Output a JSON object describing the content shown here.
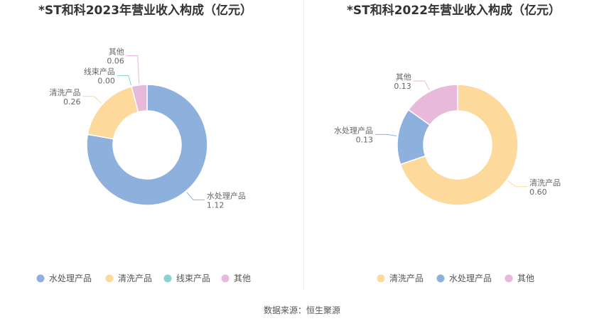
{
  "source": "数据来源：恒生聚源",
  "chart_data": [
    {
      "type": "pie",
      "title": "*ST和科2023年营业收入构成（亿元）",
      "categories": [
        "水处理产品",
        "清洗产品",
        "线束产品",
        "其他"
      ],
      "values": [
        1.12,
        0.26,
        0.0,
        0.06
      ],
      "value_labels": [
        "1.12",
        "0.26",
        "0.00",
        "0.06"
      ],
      "colors": [
        "#8eb0dd",
        "#fdd99b",
        "#88d3d3",
        "#e8b9db"
      ],
      "legend_position": "bottom"
    },
    {
      "type": "pie",
      "title": "*ST和科2022年营业收入构成（亿元）",
      "categories": [
        "清洗产品",
        "水处理产品",
        "其他"
      ],
      "values": [
        0.6,
        0.13,
        0.13
      ],
      "value_labels": [
        "0.60",
        "0.13",
        "0.13"
      ],
      "colors": [
        "#fdd99b",
        "#8eb0dd",
        "#e8b9db"
      ],
      "legend_position": "bottom"
    }
  ]
}
